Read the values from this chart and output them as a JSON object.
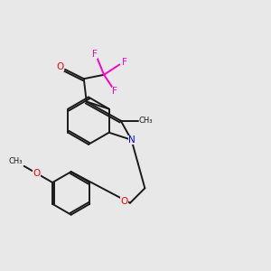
{
  "bg_color": "#e8e8e8",
  "bond_color": "#1a1a1a",
  "N_color": "#0000ff",
  "O_color": "#ff0000",
  "F_color": "#ff00cc",
  "figsize": [
    3.0,
    3.0
  ],
  "dpi": 100,
  "lw": 1.4,
  "fs": 7.5,
  "xlim": [
    0,
    10
  ],
  "ylim": [
    0,
    10
  ]
}
